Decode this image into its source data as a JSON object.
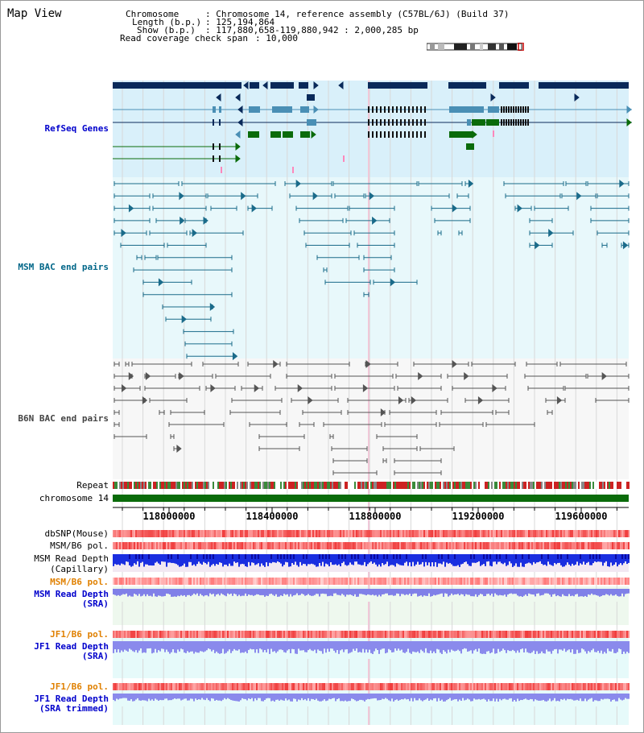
{
  "page": {
    "title": "Map View"
  },
  "info": {
    "chromosome_label": "Chromosome",
    "chromosome_value": ": Chromosome 14, reference assembly (C57BL/6J) (Build 37)",
    "length_label": "Length (b.p.)",
    "length_value": ": 125,194,864",
    "show_label": "Show (b.p.)",
    "show_value": ": 117,880,658-119,880,942 : 2,000,285 bp",
    "span_label": "Read coverage check span",
    "span_value": ": 10,000"
  },
  "tracks": {
    "refseq": "RefSeq Genes",
    "msm_bac": "MSM BAC end pairs",
    "b6n_bac": "B6N BAC end pairs",
    "repeat": "Repeat",
    "chromosome": "chromosome 14",
    "dbsnp": "dbSNP(Mouse)",
    "msm_b6_pol": "MSM/B6 pol.",
    "msm_depth_cap_1": "MSM Read Depth",
    "msm_depth_cap_2": "(Capillary)",
    "msm_b6_pol_sra": "MSM/B6 pol.",
    "msm_depth_sra_1": "MSM Read Depth",
    "msm_depth_sra_2": "(SRA)",
    "jf1_b6_pol_1": "JF1/B6 pol.",
    "jf1_depth_sra_1": "JF1 Read Depth",
    "jf1_depth_sra_2": "(SRA)",
    "jf1_b6_pol_2": "JF1/B6 pol.",
    "jf1_depth_trim_1": "JF1 Read Depth",
    "jf1_depth_trim_2": "(SRA trimmed)"
  },
  "axis": {
    "ticks": [
      "118000000",
      "118400000",
      "118800000",
      "119200000",
      "119600000"
    ]
  },
  "colors": {
    "refseq_label": "#0000cc",
    "msm_label": "#006688",
    "b6n_label": "#444444",
    "orange_label": "#e08000",
    "blue_label": "#0000cc",
    "gene_navy": "#0a2a5a",
    "gene_teal": "#4a8fb5",
    "gene_green": "#0a6b0a",
    "refseq_bg": "#d9f0fa",
    "msm_bg": "#e8f8fb",
    "chrom_green": "#0a6b0a"
  }
}
